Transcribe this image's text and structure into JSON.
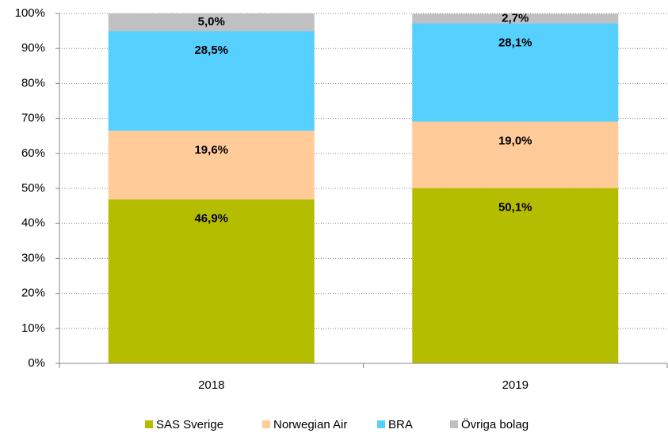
{
  "chart_data": {
    "type": "stacked_bar",
    "categories": [
      "2018",
      "2019"
    ],
    "series": [
      {
        "name": "SAS Sverige",
        "color": "#b5bd00",
        "values": [
          46.9,
          50.1
        ],
        "value_labels": [
          "46,9%",
          "50,1%"
        ]
      },
      {
        "name": "Norwegian Air",
        "color": "#ffcc99",
        "values": [
          19.6,
          19.0
        ],
        "value_labels": [
          "19,6%",
          "19,0%"
        ]
      },
      {
        "name": "BRA",
        "color": "#55d0ff",
        "values": [
          28.5,
          28.1
        ],
        "value_labels": [
          "28,5%",
          "28,1%"
        ]
      },
      {
        "name": "Övriga bolag",
        "color": "#c0c0c0",
        "values": [
          5.0,
          2.7
        ],
        "value_labels": [
          "5,0%",
          "2,7%"
        ]
      }
    ],
    "ylim": [
      0,
      100
    ],
    "yticks": [
      {
        "value": 0,
        "label": "0%"
      },
      {
        "value": 10,
        "label": "10%"
      },
      {
        "value": 20,
        "label": "20%"
      },
      {
        "value": 30,
        "label": "30%"
      },
      {
        "value": 40,
        "label": "40%"
      },
      {
        "value": 50,
        "label": "50%"
      },
      {
        "value": 60,
        "label": "60%"
      },
      {
        "value": 70,
        "label": "70%"
      },
      {
        "value": 80,
        "label": "80%"
      },
      {
        "value": 90,
        "label": "90%"
      },
      {
        "value": 100,
        "label": "100%"
      }
    ],
    "grid": true,
    "legend": "bottom"
  }
}
